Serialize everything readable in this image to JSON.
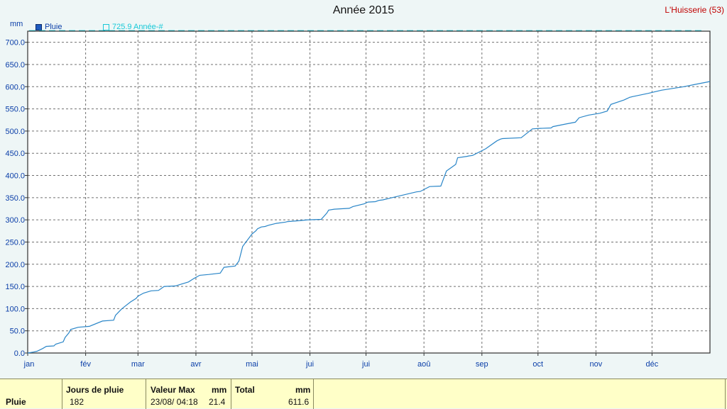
{
  "header": {
    "title": "Année 2015",
    "station": "L'Huisserie (53)",
    "unit": "mm"
  },
  "legend": [
    {
      "label": "Pluie",
      "color": "#1e5bbf"
    },
    {
      "label": "725.9 Année-#",
      "color": "#18c9d8"
    }
  ],
  "chart_data": {
    "type": "line",
    "title": "Année 2015",
    "ylabel": "mm",
    "ylim": [
      0,
      725
    ],
    "y_ticks": [
      "0.0",
      "50.0",
      "100.0",
      "150.0",
      "200.0",
      "250.0",
      "300.0",
      "350.0",
      "400.0",
      "450.0",
      "500.0",
      "550.0",
      "600.0",
      "650.0",
      "700.0"
    ],
    "x_tick_labels": [
      "jan",
      "fév",
      "mar",
      "avr",
      "mai",
      "jui",
      "jui",
      "aoû",
      "sep",
      "oct",
      "nov",
      "déc"
    ],
    "grid": true,
    "x_range_days": [
      0,
      365
    ],
    "reference_line": {
      "name": "725.9 Année-#",
      "value": 725.9
    },
    "series": [
      {
        "name": "Pluie",
        "color": "#2a86c8",
        "x": [
          0,
          3,
          5,
          8,
          10,
          14,
          15,
          19,
          20,
          22,
          23,
          27,
          33,
          40,
          46,
          47,
          50,
          52,
          55,
          58,
          59,
          62,
          66,
          70,
          73,
          79,
          86,
          89,
          92,
          97,
          103,
          105,
          111,
          113,
          115,
          120,
          122,
          123,
          124,
          125,
          127,
          129,
          133,
          138,
          139,
          145,
          150,
          157,
          160,
          161,
          164,
          172,
          174,
          180,
          182,
          186,
          188,
          190,
          195,
          205,
          208,
          210,
          215,
          221,
          224,
          229,
          230,
          235,
          236,
          238,
          245,
          251,
          253,
          254,
          264,
          270,
          274,
          280,
          281,
          288,
          293,
          295,
          300,
          306,
          310,
          312,
          319,
          321,
          322,
          324,
          332,
          339,
          345,
          351,
          357,
          365
        ],
        "y": [
          0,
          2,
          4,
          10,
          15,
          16,
          20,
          25,
          35,
          45,
          53,
          58,
          60,
          72,
          74,
          85,
          98,
          105,
          115,
          123,
          128,
          135,
          140,
          141,
          150,
          151,
          160,
          168,
          175,
          177,
          180,
          193,
          196,
          207,
          240,
          268,
          275,
          280,
          282,
          284,
          285,
          288,
          292,
          295,
          296,
          298,
          300,
          301,
          315,
          322,
          324,
          326,
          330,
          336,
          340,
          341,
          344,
          345,
          350,
          360,
          363,
          364,
          375,
          376,
          410,
          425,
          440,
          443,
          444,
          445,
          460,
          478,
          482,
          483,
          485,
          505,
          506,
          507,
          510,
          516,
          520,
          530,
          536,
          540,
          545,
          560,
          570,
          574,
          576,
          578,
          585,
          592,
          596,
          600,
          605,
          611.6
        ]
      }
    ]
  },
  "summary": {
    "row_label": "Pluie",
    "jours_header": "Jours de pluie",
    "jours_value": "182",
    "valmax_header": "Valeur Max",
    "valmax_unit": "mm",
    "valmax_date": "23/08/  04:18",
    "valmax_value": "21.4",
    "total_header": "Total",
    "total_unit": "mm",
    "total_value": "611.6"
  }
}
